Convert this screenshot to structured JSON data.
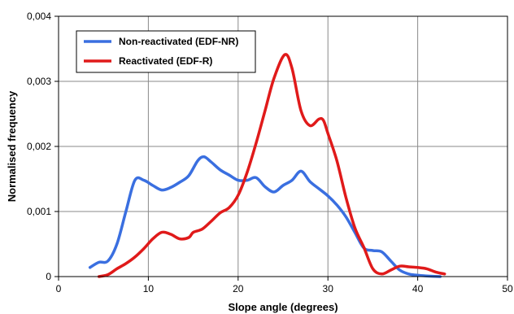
{
  "chart_data": {
    "type": "line",
    "xlabel": "Slope angle (degrees)",
    "ylabel": "Normalised frequency",
    "xlim": [
      0,
      50
    ],
    "ylim": [
      0,
      0.004
    ],
    "x_ticks": [
      "0",
      "10",
      "20",
      "30",
      "40",
      "50"
    ],
    "y_ticks": [
      "0",
      "0,001",
      "0,002",
      "0,003",
      "0,004"
    ],
    "grid": true,
    "legend_position": "top-left",
    "series": [
      {
        "name": "Non-reactivated (EDF-NR)",
        "color": "#3a6fe0",
        "points": [
          [
            3.5,
            0.00014
          ],
          [
            4.5,
            0.00022
          ],
          [
            5.5,
            0.00024
          ],
          [
            6.5,
            0.0005
          ],
          [
            7.5,
            0.001
          ],
          [
            8.5,
            0.00148
          ],
          [
            9.5,
            0.00148
          ],
          [
            10.5,
            0.0014
          ],
          [
            11.5,
            0.00133
          ],
          [
            12.5,
            0.00137
          ],
          [
            13.5,
            0.00145
          ],
          [
            14.5,
            0.00155
          ],
          [
            15.5,
            0.00178
          ],
          [
            16.2,
            0.00184
          ],
          [
            17.0,
            0.00176
          ],
          [
            18.0,
            0.00164
          ],
          [
            19.0,
            0.00156
          ],
          [
            20.0,
            0.00148
          ],
          [
            21.0,
            0.00148
          ],
          [
            22.0,
            0.00152
          ],
          [
            23.0,
            0.00138
          ],
          [
            24.0,
            0.0013
          ],
          [
            25.0,
            0.0014
          ],
          [
            26.0,
            0.00148
          ],
          [
            27.0,
            0.00162
          ],
          [
            28.0,
            0.00146
          ],
          [
            29.0,
            0.00135
          ],
          [
            30.0,
            0.00124
          ],
          [
            31.0,
            0.0011
          ],
          [
            32.0,
            0.00092
          ],
          [
            33.0,
            0.00068
          ],
          [
            34.0,
            0.00044
          ],
          [
            35.0,
            0.0004
          ],
          [
            36.0,
            0.00038
          ],
          [
            37.0,
            0.00024
          ],
          [
            38.0,
            0.0001
          ],
          [
            39.0,
            4e-05
          ],
          [
            40.0,
            2e-05
          ],
          [
            41.0,
            1e-05
          ],
          [
            42.5,
            0.0
          ]
        ]
      },
      {
        "name": "Reactivated (EDF-R)",
        "color": "#e01a1a",
        "points": [
          [
            4.5,
            0.0
          ],
          [
            5.5,
            3e-05
          ],
          [
            6.5,
            0.00012
          ],
          [
            7.5,
            0.0002
          ],
          [
            8.5,
            0.0003
          ],
          [
            9.5,
            0.00043
          ],
          [
            10.5,
            0.00058
          ],
          [
            11.5,
            0.00068
          ],
          [
            12.5,
            0.00065
          ],
          [
            13.5,
            0.00058
          ],
          [
            14.5,
            0.0006
          ],
          [
            15.0,
            0.00068
          ],
          [
            16.0,
            0.00073
          ],
          [
            17.0,
            0.00085
          ],
          [
            18.0,
            0.00098
          ],
          [
            19.0,
            0.00106
          ],
          [
            20.0,
            0.00125
          ],
          [
            21.0,
            0.0016
          ],
          [
            22.0,
            0.00205
          ],
          [
            23.0,
            0.00255
          ],
          [
            24.0,
            0.00305
          ],
          [
            25.2,
            0.00341
          ],
          [
            26.0,
            0.0032
          ],
          [
            27.0,
            0.00255
          ],
          [
            28.0,
            0.00232
          ],
          [
            29.0,
            0.00242
          ],
          [
            29.5,
            0.0024
          ],
          [
            30.0,
            0.0022
          ],
          [
            31.0,
            0.00178
          ],
          [
            32.0,
            0.00122
          ],
          [
            33.0,
            0.00075
          ],
          [
            34.0,
            0.00045
          ],
          [
            35.0,
            0.00012
          ],
          [
            36.0,
            4e-05
          ],
          [
            37.0,
            0.0001
          ],
          [
            38.0,
            0.00016
          ],
          [
            39.0,
            0.00015
          ],
          [
            40.0,
            0.00014
          ],
          [
            41.0,
            0.00012
          ],
          [
            42.0,
            7e-05
          ],
          [
            43.0,
            4e-05
          ]
        ]
      }
    ]
  }
}
